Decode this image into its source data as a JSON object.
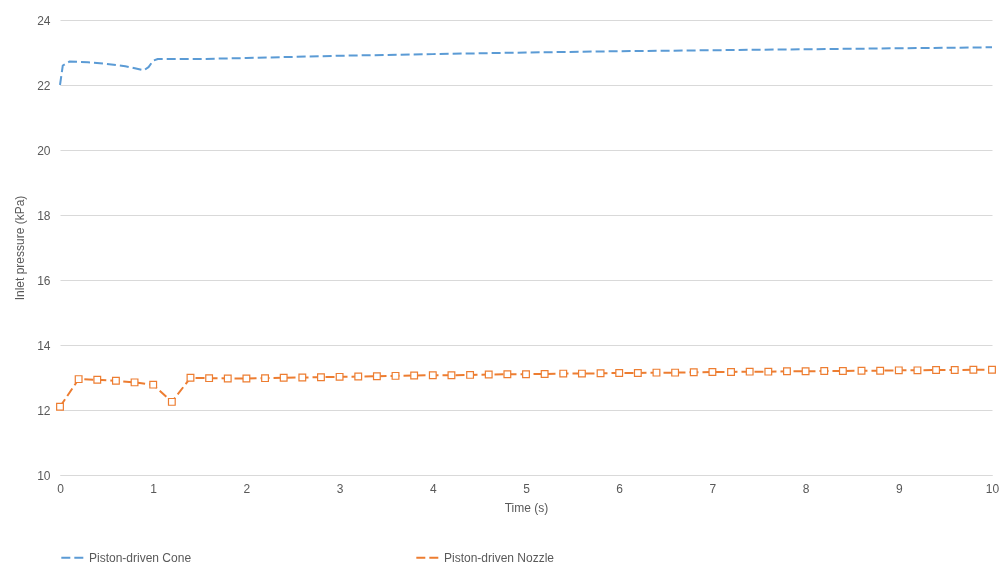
{
  "chart_data": {
    "type": "line",
    "xlabel": "Time (s)",
    "ylabel": "Inlet pressure (kPa)",
    "xlim": [
      0,
      10
    ],
    "xticks": [
      0,
      1,
      2,
      3,
      4,
      5,
      6,
      7,
      8,
      9,
      10
    ],
    "ylim": [
      10,
      24
    ],
    "yticks": [
      10,
      12,
      14,
      16,
      18,
      20,
      22,
      24
    ],
    "grid": "y",
    "legend": "bottom",
    "line_style": "dashed",
    "series": [
      {
        "name": "Piston-driven Cone",
        "color": "#5b9bd5",
        "marker": "none",
        "x": [
          0,
          0.03,
          0.1,
          0.3,
          0.5,
          0.7,
          0.9,
          0.95,
          1.0,
          1.05,
          1.5,
          2,
          3,
          4,
          5,
          6,
          7,
          8,
          9,
          10
        ],
        "values": [
          22.0,
          22.6,
          22.72,
          22.7,
          22.65,
          22.58,
          22.45,
          22.55,
          22.75,
          22.8,
          22.8,
          22.83,
          22.9,
          22.95,
          23.0,
          23.04,
          23.07,
          23.1,
          23.13,
          23.16
        ]
      },
      {
        "name": "Piston-driven Nozzle",
        "color": "#ed7d31",
        "marker": "square",
        "x": [
          0,
          0.2,
          0.4,
          0.6,
          0.8,
          1.0,
          1.2,
          1.4,
          1.6,
          1.8,
          2.0,
          2.2,
          2.4,
          2.6,
          2.8,
          3.0,
          3.2,
          3.4,
          3.6,
          3.8,
          4.0,
          4.2,
          4.4,
          4.6,
          4.8,
          5.0,
          5.2,
          5.4,
          5.6,
          5.8,
          6.0,
          6.2,
          6.4,
          6.6,
          6.8,
          7.0,
          7.2,
          7.4,
          7.6,
          7.8,
          8.0,
          8.2,
          8.4,
          8.6,
          8.8,
          9.0,
          9.2,
          9.4,
          9.6,
          9.8,
          10.0
        ],
        "values": [
          12.1,
          12.95,
          12.93,
          12.9,
          12.85,
          12.78,
          12.25,
          12.99,
          12.98,
          12.97,
          12.97,
          12.98,
          12.99,
          13.0,
          13.01,
          13.02,
          13.03,
          13.04,
          13.05,
          13.06,
          13.07,
          13.07,
          13.08,
          13.09,
          13.1,
          13.1,
          13.11,
          13.12,
          13.12,
          13.13,
          13.14,
          13.14,
          13.15,
          13.15,
          13.16,
          13.17,
          13.17,
          13.18,
          13.18,
          13.19,
          13.19,
          13.2,
          13.2,
          13.21,
          13.21,
          13.22,
          13.22,
          13.23,
          13.23,
          13.24,
          13.24
        ]
      }
    ]
  }
}
